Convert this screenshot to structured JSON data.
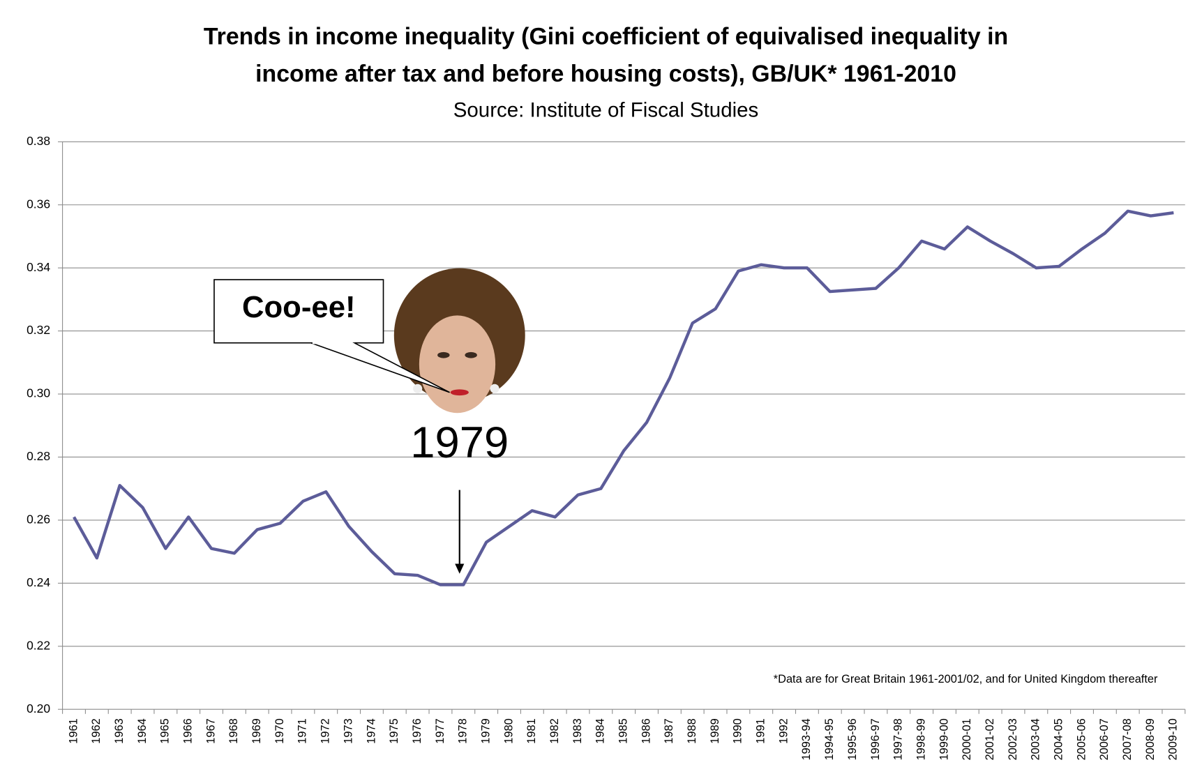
{
  "chart_data": {
    "type": "line",
    "title": [
      "Trends in income inequality (Gini coefficient of equivalised inequality in",
      "income after tax and before housing costs), GB/UK* 1961-2010"
    ],
    "subtitle": "Source: Institute of Fiscal Studies",
    "annotations": {
      "speech": "Coo-ee!",
      "year": "1979",
      "footnote": "*Data are for Great Britain 1961-2001/02, and for United Kingdom thereafter"
    },
    "categories": [
      "1961",
      "1962",
      "1963",
      "1964",
      "1965",
      "1966",
      "1967",
      "1968",
      "1969",
      "1970",
      "1971",
      "1972",
      "1973",
      "1974",
      "1975",
      "1976",
      "1977",
      "1978",
      "1979",
      "1980",
      "1981",
      "1982",
      "1983",
      "1984",
      "1985",
      "1986",
      "1987",
      "1988",
      "1989",
      "1990",
      "1991",
      "1992",
      "1993-94",
      "1994-95",
      "1995-96",
      "1996-97",
      "1997-98",
      "1998-99",
      "1999-00",
      "2000-01",
      "2001-02",
      "2002-03",
      "2003-04",
      "2004-05",
      "2005-06",
      "2006-07",
      "2007-08",
      "2008-09",
      "2009-10"
    ],
    "values": [
      0.261,
      0.248,
      0.271,
      0.264,
      0.251,
      0.261,
      0.251,
      0.2495,
      0.257,
      0.259,
      0.266,
      0.269,
      0.258,
      0.25,
      0.243,
      0.2425,
      0.2395,
      0.2395,
      0.253,
      0.258,
      0.263,
      0.261,
      0.268,
      0.27,
      0.282,
      0.291,
      0.305,
      0.3225,
      0.327,
      0.339,
      0.341,
      0.34,
      0.34,
      0.3325,
      0.333,
      0.3335,
      0.34,
      0.3485,
      0.346,
      0.353,
      0.3485,
      0.3445,
      0.34,
      0.3405,
      0.346,
      0.351,
      0.358,
      0.3565,
      0.3575
    ],
    "color": "#5c5c99",
    "ylim": [
      0.2,
      0.38
    ],
    "yticks": [
      {
        "value": 0.2,
        "label": "0.20"
      },
      0.22,
      0.24,
      0.26,
      0.28,
      {
        "value": 0.3,
        "label": "0.30"
      },
      0.32,
      0.34,
      0.36,
      0.38
    ],
    "grid": true
  }
}
